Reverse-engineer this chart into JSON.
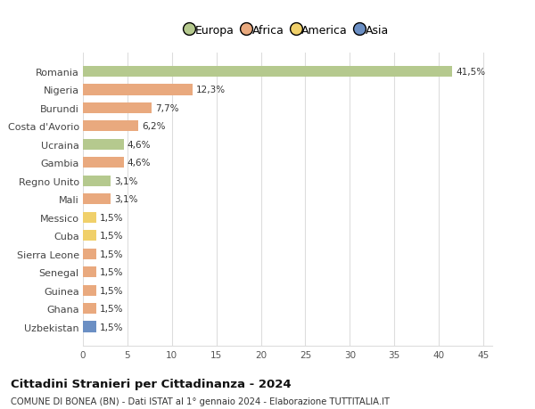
{
  "categories": [
    "Romania",
    "Nigeria",
    "Burundi",
    "Costa d'Avorio",
    "Ucraina",
    "Gambia",
    "Regno Unito",
    "Mali",
    "Messico",
    "Cuba",
    "Sierra Leone",
    "Senegal",
    "Guinea",
    "Ghana",
    "Uzbekistan"
  ],
  "values": [
    41.5,
    12.3,
    7.7,
    6.2,
    4.6,
    4.6,
    3.1,
    3.1,
    1.5,
    1.5,
    1.5,
    1.5,
    1.5,
    1.5,
    1.5
  ],
  "labels": [
    "41,5%",
    "12,3%",
    "7,7%",
    "6,2%",
    "4,6%",
    "4,6%",
    "3,1%",
    "3,1%",
    "1,5%",
    "1,5%",
    "1,5%",
    "1,5%",
    "1,5%",
    "1,5%",
    "1,5%"
  ],
  "colors": [
    "#b5c98e",
    "#e9a97e",
    "#e9a97e",
    "#e9a97e",
    "#b5c98e",
    "#e9a97e",
    "#b5c98e",
    "#e9a97e",
    "#f0d06a",
    "#f0d06a",
    "#e9a97e",
    "#e9a97e",
    "#e9a97e",
    "#e9a97e",
    "#6b8fc4"
  ],
  "continent_colors": {
    "Europa": "#b5c98e",
    "Africa": "#e9a97e",
    "America": "#f0d06a",
    "Asia": "#6b8fc4"
  },
  "xlim": [
    0,
    46
  ],
  "xticks": [
    0,
    5,
    10,
    15,
    20,
    25,
    30,
    35,
    40,
    45
  ],
  "title": "Cittadini Stranieri per Cittadinanza - 2024",
  "subtitle": "COMUNE DI BONEA (BN) - Dati ISTAT al 1° gennaio 2024 - Elaborazione TUTTITALIA.IT",
  "background_color": "#ffffff",
  "grid_color": "#dddddd",
  "bar_height": 0.6
}
